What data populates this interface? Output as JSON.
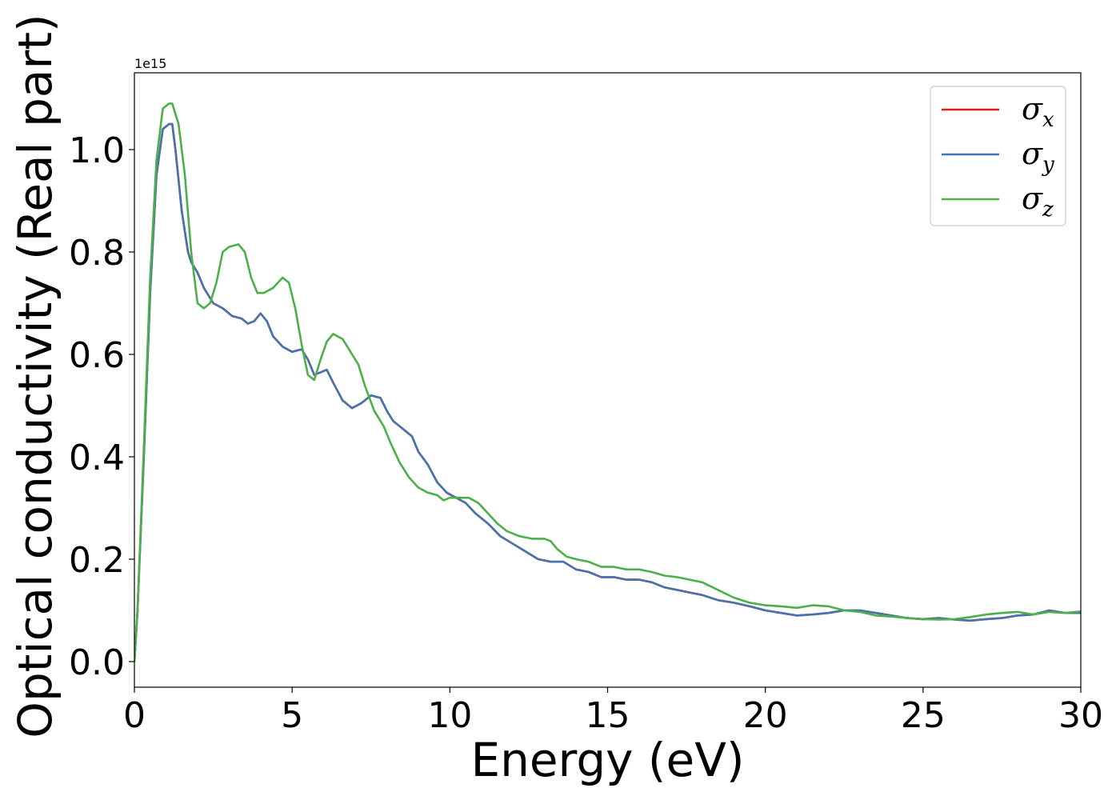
{
  "chart_data": {
    "type": "line",
    "title": "",
    "xlabel": "Energy (eV)",
    "ylabel": "Optical conductivity (Real part)",
    "y_offset_label": "1e15",
    "xlim": [
      0,
      30
    ],
    "ylim": [
      -0.05,
      1.15
    ],
    "x_ticks": [
      0,
      5,
      10,
      15,
      20,
      25,
      30
    ],
    "x_tick_labels": [
      "0",
      "5",
      "10",
      "15",
      "20",
      "25",
      "30"
    ],
    "y_ticks": [
      0.0,
      0.2,
      0.4,
      0.6,
      0.8,
      1.0
    ],
    "y_tick_labels": [
      "0.0",
      "0.2",
      "0.4",
      "0.6",
      "0.8",
      "1.0"
    ],
    "grid": false,
    "legend_position": "top-right",
    "series": [
      {
        "name": "σx",
        "symbol": "σ",
        "subscript": "x",
        "color": "#e41a1c",
        "x": [
          0,
          0.1,
          0.3,
          0.5,
          0.7,
          0.9,
          1.1,
          1.2,
          1.3,
          1.5,
          1.7,
          1.8,
          2.0,
          2.2,
          2.5,
          2.8,
          3.1,
          3.4,
          3.6,
          3.8,
          4.0,
          4.2,
          4.4,
          4.7,
          5.0,
          5.3,
          5.5,
          5.7,
          5.9,
          6.1,
          6.3,
          6.6,
          6.9,
          7.2,
          7.5,
          7.8,
          8.0,
          8.2,
          8.5,
          8.8,
          9.0,
          9.3,
          9.6,
          9.9,
          10.2,
          10.5,
          10.8,
          11.2,
          11.6,
          12.0,
          12.4,
          12.8,
          13.2,
          13.6,
          14.0,
          14.4,
          14.8,
          15.2,
          15.6,
          16.0,
          16.4,
          16.8,
          17.2,
          17.6,
          18.0,
          18.5,
          19.0,
          19.5,
          20.0,
          20.5,
          21.0,
          21.5,
          22.0,
          22.5,
          23.0,
          23.5,
          24.0,
          24.5,
          25.0,
          25.5,
          26.0,
          26.5,
          27.0,
          27.5,
          28.0,
          28.5,
          29.0,
          29.5,
          30.0
        ],
        "values": [
          0.0,
          0.1,
          0.4,
          0.72,
          0.95,
          1.04,
          1.05,
          1.05,
          1.0,
          0.88,
          0.8,
          0.78,
          0.76,
          0.73,
          0.7,
          0.69,
          0.675,
          0.67,
          0.66,
          0.665,
          0.68,
          0.665,
          0.635,
          0.615,
          0.605,
          0.61,
          0.59,
          0.56,
          0.565,
          0.57,
          0.545,
          0.51,
          0.495,
          0.505,
          0.52,
          0.515,
          0.49,
          0.47,
          0.455,
          0.44,
          0.41,
          0.385,
          0.35,
          0.33,
          0.32,
          0.31,
          0.29,
          0.27,
          0.245,
          0.23,
          0.215,
          0.2,
          0.195,
          0.195,
          0.18,
          0.175,
          0.165,
          0.165,
          0.16,
          0.16,
          0.155,
          0.145,
          0.14,
          0.135,
          0.13,
          0.12,
          0.115,
          0.108,
          0.1,
          0.095,
          0.09,
          0.092,
          0.095,
          0.1,
          0.1,
          0.095,
          0.09,
          0.085,
          0.083,
          0.085,
          0.082,
          0.08,
          0.083,
          0.085,
          0.09,
          0.092,
          0.1,
          0.095,
          0.095
        ]
      },
      {
        "name": "σy",
        "symbol": "σ",
        "subscript": "y",
        "color": "#4574ad",
        "x": [
          0,
          0.1,
          0.3,
          0.5,
          0.7,
          0.9,
          1.1,
          1.2,
          1.3,
          1.5,
          1.7,
          1.8,
          2.0,
          2.2,
          2.5,
          2.8,
          3.1,
          3.4,
          3.6,
          3.8,
          4.0,
          4.2,
          4.4,
          4.7,
          5.0,
          5.3,
          5.5,
          5.7,
          5.9,
          6.1,
          6.3,
          6.6,
          6.9,
          7.2,
          7.5,
          7.8,
          8.0,
          8.2,
          8.5,
          8.8,
          9.0,
          9.3,
          9.6,
          9.9,
          10.2,
          10.5,
          10.8,
          11.2,
          11.6,
          12.0,
          12.4,
          12.8,
          13.2,
          13.6,
          14.0,
          14.4,
          14.8,
          15.2,
          15.6,
          16.0,
          16.4,
          16.8,
          17.2,
          17.6,
          18.0,
          18.5,
          19.0,
          19.5,
          20.0,
          20.5,
          21.0,
          21.5,
          22.0,
          22.5,
          23.0,
          23.5,
          24.0,
          24.5,
          25.0,
          25.5,
          26.0,
          26.5,
          27.0,
          27.5,
          28.0,
          28.5,
          29.0,
          29.5,
          30.0
        ],
        "values": [
          0.0,
          0.1,
          0.4,
          0.72,
          0.95,
          1.04,
          1.05,
          1.05,
          1.0,
          0.88,
          0.8,
          0.78,
          0.76,
          0.73,
          0.7,
          0.69,
          0.675,
          0.67,
          0.66,
          0.665,
          0.68,
          0.665,
          0.635,
          0.615,
          0.605,
          0.61,
          0.59,
          0.56,
          0.565,
          0.57,
          0.545,
          0.51,
          0.495,
          0.505,
          0.52,
          0.515,
          0.49,
          0.47,
          0.455,
          0.44,
          0.41,
          0.385,
          0.35,
          0.33,
          0.32,
          0.31,
          0.29,
          0.27,
          0.245,
          0.23,
          0.215,
          0.2,
          0.195,
          0.195,
          0.18,
          0.175,
          0.165,
          0.165,
          0.16,
          0.16,
          0.155,
          0.145,
          0.14,
          0.135,
          0.13,
          0.12,
          0.115,
          0.108,
          0.1,
          0.095,
          0.09,
          0.092,
          0.095,
          0.1,
          0.1,
          0.095,
          0.09,
          0.085,
          0.083,
          0.085,
          0.082,
          0.08,
          0.083,
          0.085,
          0.09,
          0.092,
          0.1,
          0.095,
          0.095
        ]
      },
      {
        "name": "σz",
        "symbol": "σ",
        "subscript": "z",
        "color": "#4daf4a",
        "x": [
          0,
          0.1,
          0.3,
          0.5,
          0.7,
          0.9,
          1.1,
          1.2,
          1.4,
          1.6,
          1.8,
          2.0,
          2.2,
          2.4,
          2.6,
          2.8,
          3.0,
          3.3,
          3.5,
          3.7,
          3.9,
          4.1,
          4.4,
          4.7,
          4.9,
          5.1,
          5.3,
          5.5,
          5.7,
          5.9,
          6.1,
          6.3,
          6.6,
          6.9,
          7.1,
          7.3,
          7.6,
          7.9,
          8.1,
          8.4,
          8.7,
          9.0,
          9.3,
          9.6,
          9.8,
          10.0,
          10.3,
          10.6,
          10.9,
          11.2,
          11.5,
          11.8,
          12.2,
          12.6,
          13.0,
          13.2,
          13.4,
          13.7,
          14.0,
          14.4,
          14.8,
          15.2,
          15.6,
          16.0,
          16.4,
          16.8,
          17.2,
          17.6,
          18.0,
          18.5,
          19.0,
          19.5,
          20.0,
          20.5,
          21.0,
          21.5,
          22.0,
          22.5,
          23.0,
          23.5,
          24.0,
          24.5,
          25.0,
          25.5,
          26.0,
          26.5,
          27.0,
          27.5,
          28.0,
          28.5,
          29.0,
          29.5,
          30.0
        ],
        "values": [
          0.0,
          0.1,
          0.42,
          0.75,
          0.98,
          1.08,
          1.09,
          1.09,
          1.05,
          0.95,
          0.8,
          0.7,
          0.69,
          0.7,
          0.74,
          0.8,
          0.81,
          0.815,
          0.8,
          0.75,
          0.72,
          0.72,
          0.73,
          0.75,
          0.74,
          0.69,
          0.62,
          0.56,
          0.55,
          0.59,
          0.625,
          0.64,
          0.63,
          0.6,
          0.58,
          0.54,
          0.49,
          0.46,
          0.43,
          0.39,
          0.36,
          0.34,
          0.33,
          0.325,
          0.315,
          0.32,
          0.32,
          0.32,
          0.31,
          0.29,
          0.27,
          0.255,
          0.245,
          0.24,
          0.24,
          0.235,
          0.22,
          0.205,
          0.2,
          0.195,
          0.185,
          0.185,
          0.18,
          0.18,
          0.175,
          0.168,
          0.165,
          0.16,
          0.155,
          0.14,
          0.125,
          0.115,
          0.11,
          0.108,
          0.105,
          0.11,
          0.108,
          0.1,
          0.097,
          0.09,
          0.088,
          0.085,
          0.083,
          0.082,
          0.083,
          0.087,
          0.092,
          0.095,
          0.097,
          0.092,
          0.097,
          0.095,
          0.098
        ]
      }
    ]
  }
}
